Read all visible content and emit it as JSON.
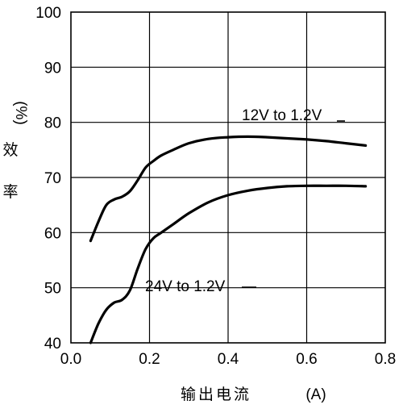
{
  "chart_data": {
    "type": "line",
    "xlabel": "输出电流",
    "xunit": "(A)",
    "ylabel_unit": "(%)",
    "ylabel": "效率",
    "xlim": [
      0.0,
      0.8
    ],
    "ylim": [
      40,
      100
    ],
    "x_ticks": [
      "0.0",
      "0.2",
      "0.4",
      "0.6",
      "0.8"
    ],
    "y_ticks": [
      "40",
      "50",
      "60",
      "70",
      "80",
      "90",
      "100"
    ],
    "grid": true,
    "series": [
      {
        "name": "12V to 1.2V",
        "x": [
          0.05,
          0.07,
          0.09,
          0.11,
          0.13,
          0.15,
          0.17,
          0.19,
          0.21,
          0.23,
          0.26,
          0.3,
          0.35,
          0.4,
          0.45,
          0.5,
          0.55,
          0.6,
          0.65,
          0.7,
          0.75
        ],
        "y": [
          58.5,
          62.0,
          65.0,
          66.0,
          66.5,
          67.5,
          69.5,
          71.8,
          73.0,
          74.0,
          75.0,
          76.2,
          77.0,
          77.3,
          77.4,
          77.3,
          77.1,
          76.9,
          76.6,
          76.2,
          75.8
        ],
        "color": "#000000"
      },
      {
        "name": "24V to 1.2V",
        "x": [
          0.05,
          0.07,
          0.09,
          0.11,
          0.13,
          0.15,
          0.17,
          0.19,
          0.21,
          0.23,
          0.26,
          0.3,
          0.35,
          0.4,
          0.45,
          0.5,
          0.55,
          0.6,
          0.65,
          0.7,
          0.75
        ],
        "y": [
          40.0,
          43.5,
          46.0,
          47.3,
          47.8,
          49.5,
          53.5,
          57.0,
          59.0,
          60.0,
          61.5,
          63.5,
          65.5,
          66.8,
          67.6,
          68.1,
          68.4,
          68.5,
          68.5,
          68.5,
          68.4
        ],
        "color": "#000000"
      }
    ]
  }
}
